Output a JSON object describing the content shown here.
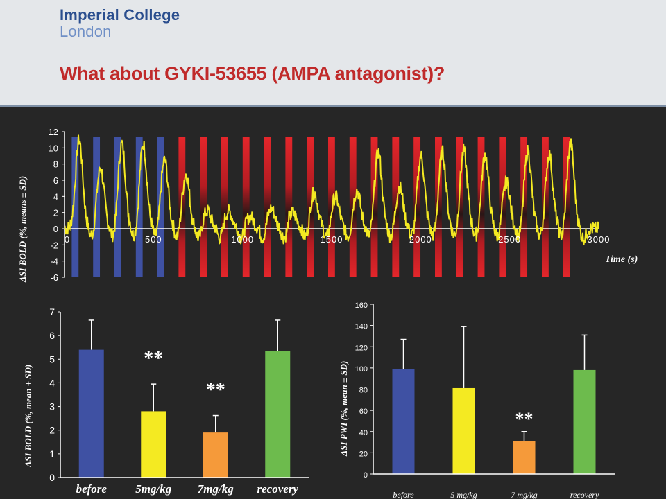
{
  "header": {
    "logo_line1": "Imperial College",
    "logo_line2": "London",
    "title": "What about GYKI-53655 (AMPA antagonist)?"
  },
  "colors": {
    "header_bg": "#e4e7ea",
    "slide_bg": "#262626",
    "title_red": "#c02a2a",
    "logo_blue": "#2a4e8e",
    "before_blue": "#3f51a3",
    "infusion_red": "#dc2126",
    "trace_yellow": "#f4ea22",
    "bar_green": "#6dbb4d",
    "bar_orange": "#f59a3a"
  },
  "chart_data": [
    {
      "type": "line",
      "title": "",
      "xlabel": "Time (s)",
      "ylabel": "ΔSI BOLD (%, means ± SD)",
      "xlim": [
        0,
        3000
      ],
      "ylim": [
        -6,
        12
      ],
      "xticks": [
        0,
        500,
        1000,
        1500,
        2000,
        2500,
        3000
      ],
      "yticks": [
        -6,
        -4,
        -2,
        0,
        2,
        4,
        6,
        8,
        10,
        12
      ],
      "grid": false,
      "stimulus_blocks": {
        "onsets": [
          60,
          180,
          300,
          420,
          540,
          660,
          780,
          900,
          1020,
          1140,
          1260,
          1380,
          1500,
          1620,
          1740,
          1860,
          1980,
          2100,
          2220,
          2340,
          2460,
          2580,
          2700,
          2820
        ],
        "duration": 50,
        "colors": [
          "blue",
          "blue",
          "blue",
          "blue",
          "blue",
          "red",
          "red",
          "red",
          "red",
          "red",
          "red",
          "red",
          "red",
          "red",
          "red",
          "red",
          "red",
          "red",
          "red",
          "red",
          "red",
          "red",
          "red",
          "red"
        ]
      },
      "series": [
        {
          "color": "yellow",
          "peaks": [
            11.0,
            7.5,
            10.5,
            10.5,
            8.5,
            6.8,
            2.2,
            2.2,
            1.5,
            2.5,
            2.0,
            4.5,
            4.0,
            4.8,
            9.5,
            5.2,
            9.0,
            9.5,
            9.6,
            9.2,
            5.8,
            9.6,
            9.2,
            10.5
          ],
          "baseline": 0,
          "noise_sd": 0.9
        }
      ]
    },
    {
      "type": "bar",
      "title": "",
      "xlabel": "",
      "ylabel": "ΔSI BOLD (%, mean ± SD)",
      "ylim": [
        0,
        7
      ],
      "yticks": [
        0,
        1,
        2,
        3,
        4,
        5,
        6,
        7
      ],
      "categories": [
        "before",
        "5mg/kg",
        "7mg/kg",
        "recovery"
      ],
      "values": [
        5.4,
        2.8,
        1.9,
        5.35
      ],
      "errors": [
        1.25,
        1.15,
        0.72,
        1.3
      ],
      "bar_colors": [
        "blue",
        "yellow",
        "orange",
        "green"
      ],
      "annotations": [
        "",
        "**",
        "**",
        ""
      ],
      "grid": false
    },
    {
      "type": "bar",
      "title": "",
      "xlabel": "",
      "ylabel": "ΔSI PWI (%, mean ± SD)",
      "ylim": [
        0,
        160
      ],
      "yticks": [
        0,
        20,
        40,
        60,
        80,
        100,
        120,
        140,
        160
      ],
      "categories": [
        "before",
        "5 mg/kg",
        "7 mg/kg",
        "recovery"
      ],
      "values": [
        99,
        81,
        31,
        98
      ],
      "errors": [
        28,
        58,
        9,
        33
      ],
      "bar_colors": [
        "blue",
        "yellow",
        "orange",
        "green"
      ],
      "annotations": [
        "",
        "",
        "**",
        ""
      ],
      "grid": false
    }
  ]
}
